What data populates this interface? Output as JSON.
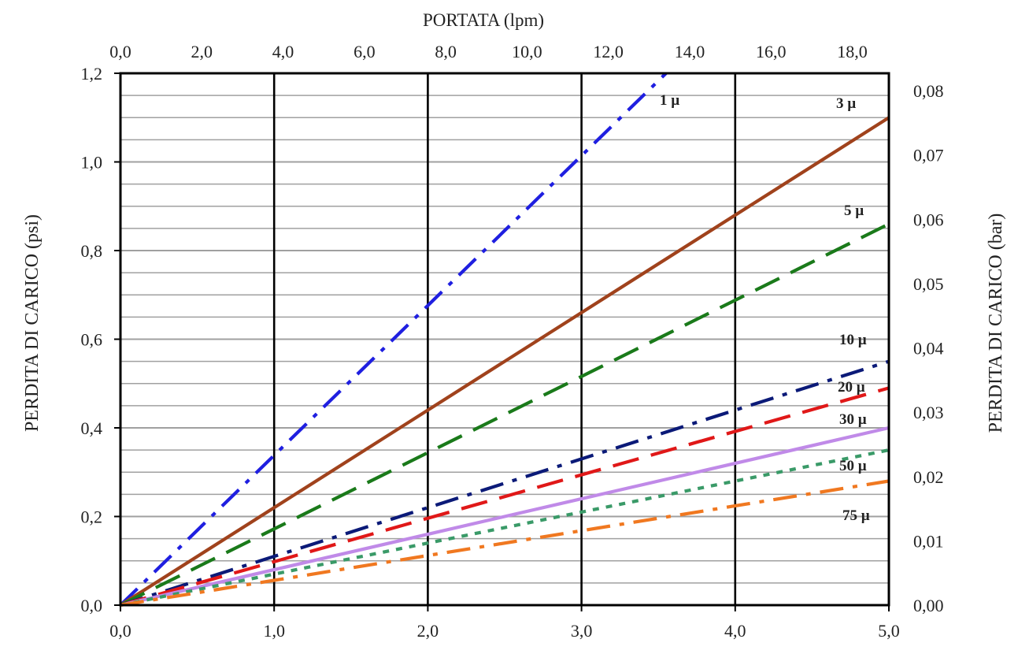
{
  "chart_data": {
    "type": "line",
    "xlabel_top": "PORTATA (lpm)",
    "ylabel_left": "PERDITA DI CARICO (psi)",
    "ylabel_right": "PERDITA DI CARICO (bar)",
    "x_bottom": {
      "range": [
        0,
        5
      ],
      "ticks": [
        "0,0",
        "1,0",
        "2,0",
        "3,0",
        "4,0",
        "5,0"
      ]
    },
    "x_top": {
      "range": [
        0,
        18.9
      ],
      "ticks": [
        "0,0",
        "2,0",
        "4,0",
        "6,0",
        "8,0",
        "10,0",
        "12,0",
        "14,0",
        "16,0",
        "18,0"
      ],
      "tick_values": [
        0,
        2,
        4,
        6,
        8,
        10,
        12,
        14,
        16,
        18
      ]
    },
    "y_left": {
      "range": [
        0,
        1.2
      ],
      "ticks": [
        "0,0",
        "0,2",
        "0,4",
        "0,6",
        "0,8",
        "1,0",
        "1,2"
      ]
    },
    "y_right": {
      "range": [
        0,
        0.0827
      ],
      "ticks": [
        "0,00",
        "0,01",
        "0,02",
        "0,03",
        "0,04",
        "0,05",
        "0,06",
        "0,07",
        "0,08"
      ],
      "tick_values": [
        0,
        0.01,
        0.02,
        0.03,
        0.04,
        0.05,
        0.06,
        0.07,
        0.08
      ]
    },
    "grid": true,
    "series": [
      {
        "name": "1 µ",
        "color": "#1f1fe0",
        "dash": "dashdot",
        "x": [
          0,
          3.55
        ],
        "y": [
          0,
          1.2
        ]
      },
      {
        "name": "3 µ",
        "color": "#a0421c",
        "dash": "solid",
        "x": [
          0,
          5
        ],
        "y": [
          0,
          1.1
        ]
      },
      {
        "name": "5 µ",
        "color": "#1a7a1a",
        "dash": "dash",
        "x": [
          0,
          5
        ],
        "y": [
          0,
          0.86
        ]
      },
      {
        "name": "10 µ",
        "color": "#0b1a78",
        "dash": "dashdot",
        "x": [
          0,
          5
        ],
        "y": [
          0,
          0.55
        ]
      },
      {
        "name": "20 µ",
        "color": "#e01818",
        "dash": "dash",
        "x": [
          0,
          5
        ],
        "y": [
          0,
          0.49
        ]
      },
      {
        "name": "30 µ",
        "color": "#c08ae8",
        "dash": "solid",
        "x": [
          0,
          5
        ],
        "y": [
          0,
          0.4
        ]
      },
      {
        "name": "50 µ",
        "color": "#3a9a68",
        "dash": "dot",
        "x": [
          0,
          5
        ],
        "y": [
          0,
          0.35
        ]
      },
      {
        "name": "75 µ",
        "color": "#f07820",
        "dash": "dashdot",
        "x": [
          0,
          5
        ],
        "y": [
          0,
          0.28
        ]
      }
    ]
  }
}
